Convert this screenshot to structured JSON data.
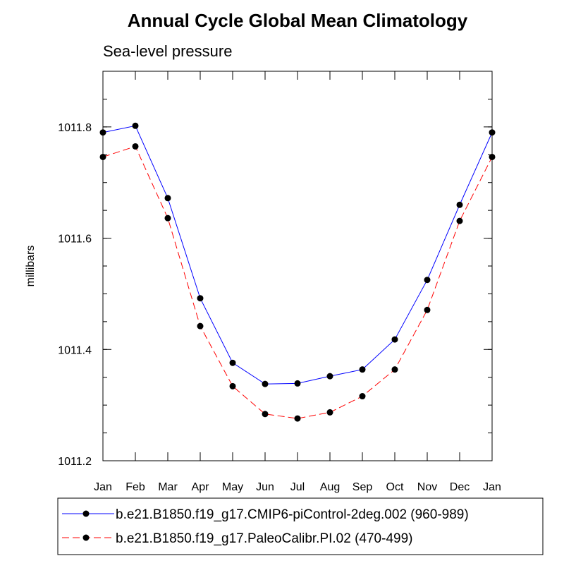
{
  "chart_data": {
    "type": "line",
    "title": "Annual Cycle Global Mean Climatology",
    "subtitle": "Sea-level pressure",
    "xlabel": "",
    "ylabel": "millibars",
    "categories": [
      "Jan",
      "Feb",
      "Mar",
      "Apr",
      "May",
      "Jun",
      "Jul",
      "Aug",
      "Sep",
      "Oct",
      "Nov",
      "Dec",
      "Jan"
    ],
    "ylim": [
      1011.2,
      1011.9
    ],
    "yticks": [
      1011.2,
      1011.4,
      1011.6,
      1011.8
    ],
    "ytick_labels": [
      "1011.2",
      "1011.4",
      "1011.6",
      "1011.8"
    ],
    "series": [
      {
        "name": "b.e21.B1850.f19_g17.CMIP6-piControl-2deg.002 (960-989)",
        "color": "#0000ff",
        "line_style": "solid",
        "marker": "filled-circle",
        "values": [
          1011.79,
          1011.802,
          1011.672,
          1011.492,
          1011.376,
          1011.338,
          1011.339,
          1011.352,
          1011.364,
          1011.418,
          1011.525,
          1011.66,
          1011.79
        ]
      },
      {
        "name": "b.e21.B1850.f19_g17.PaleoCalibr.PI.02 (470-499)",
        "color": "#ff0000",
        "line_style": "dashed",
        "marker": "filled-circle",
        "values": [
          1011.746,
          1011.765,
          1011.636,
          1011.442,
          1011.334,
          1011.284,
          1011.276,
          1011.287,
          1011.316,
          1011.364,
          1011.471,
          1011.631,
          1011.746
        ]
      }
    ],
    "legend_position": "bottom"
  }
}
